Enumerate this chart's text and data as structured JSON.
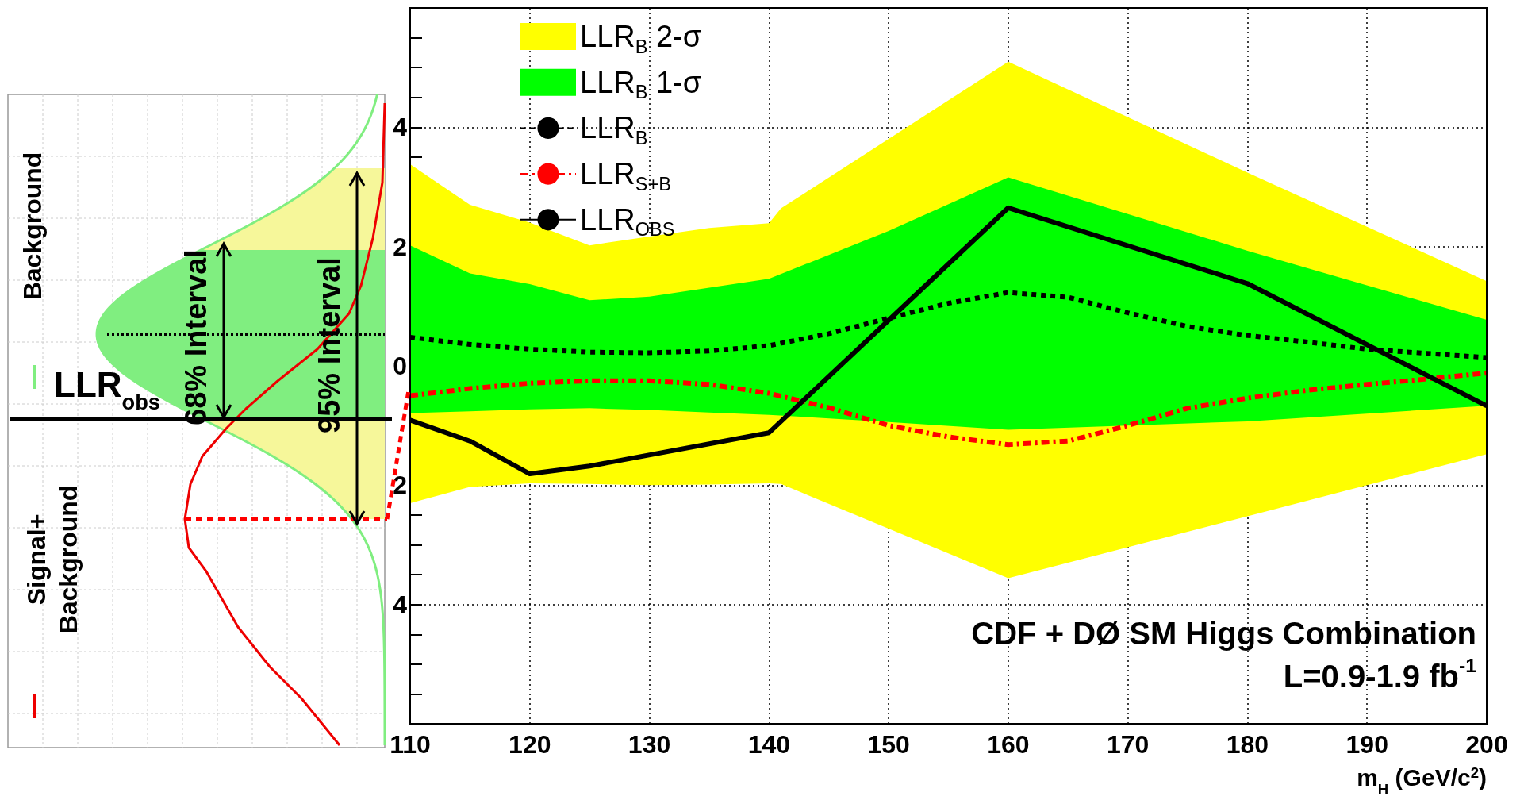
{
  "chart_data": {
    "type": "line",
    "xlabel": "m$_{H}$ (GeV/c$^{2}$)",
    "xlim": [
      110,
      200
    ],
    "xticks": [
      110,
      120,
      130,
      140,
      150,
      160,
      170,
      180,
      190,
      200
    ],
    "ylim": [
      -6,
      6
    ],
    "yticks": [
      {
        "value": -4,
        "label": "4"
      },
      {
        "value": -2,
        "label": "2"
      },
      0,
      2,
      4
    ],
    "grid": true,
    "legend": "top left",
    "series": [
      {
        "name": "LLR$_{B}$ 2-σ",
        "color": "#ffff00",
        "x": [
          110,
          115,
          120,
          125,
          130,
          135,
          140,
          141,
          160,
          180,
          200
        ],
        "values": [
          null,
          null,
          null,
          null,
          null,
          null,
          null,
          null,
          null,
          null,
          null
        ],
        "lower": [
          -2.3,
          -2.03,
          -1.97,
          -1.98,
          -2.0,
          -1.99,
          -1.97,
          -1.98,
          -3.56,
          -2.52,
          -1.48
        ],
        "upper": [
          3.38,
          2.7,
          2.4,
          2.02,
          2.17,
          2.31,
          2.39,
          2.64,
          5.1,
          3.24,
          1.42
        ]
      },
      {
        "name": "LLR$_{B}$ 1-σ",
        "color": "#00ff00",
        "x": [
          110,
          115,
          120,
          125,
          130,
          135,
          140,
          150,
          160,
          180,
          200
        ],
        "values": [
          null,
          null,
          null,
          null,
          null,
          null,
          null,
          null,
          null,
          null,
          null
        ],
        "lower": [
          -0.79,
          -0.76,
          -0.73,
          -0.71,
          -0.74,
          -0.78,
          -0.82,
          -0.94,
          -1.07,
          -0.93,
          -0.67
        ],
        "upper": [
          2.02,
          1.55,
          1.37,
          1.1,
          1.16,
          1.31,
          1.46,
          2.26,
          3.16,
          1.93,
          0.77
        ]
      },
      {
        "name": "LLR$_{B}$",
        "color": "#000000",
        "line_style": "dotted",
        "x": [
          110,
          115,
          120,
          125,
          130,
          135,
          140,
          145,
          150,
          155,
          160,
          165,
          170,
          175,
          180,
          185,
          190,
          195,
          200
        ],
        "values": [
          0.48,
          0.36,
          0.28,
          0.23,
          0.22,
          0.25,
          0.34,
          0.54,
          0.8,
          1.05,
          1.23,
          1.15,
          0.89,
          0.66,
          0.51,
          0.4,
          0.28,
          0.21,
          0.14
        ]
      },
      {
        "name": "LLR$_{S+B}$",
        "color": "#ff0000",
        "line_style": "dashed",
        "x": [
          110,
          115,
          120,
          125,
          130,
          135,
          140,
          145,
          150,
          155,
          160,
          165,
          170,
          175,
          180,
          185,
          190,
          195,
          200
        ],
        "values": [
          -0.5,
          -0.38,
          -0.29,
          -0.25,
          -0.25,
          -0.31,
          -0.46,
          -0.7,
          -1.0,
          -1.19,
          -1.32,
          -1.26,
          -1.0,
          -0.71,
          -0.54,
          -0.41,
          -0.31,
          -0.22,
          -0.12
        ]
      },
      {
        "name": "LLR$_{OBS}$",
        "color": "#000000",
        "line_style": "solid",
        "x": [
          110,
          115,
          120,
          125,
          140,
          160,
          180,
          200
        ],
        "values": [
          -0.91,
          -1.26,
          -1.81,
          -1.68,
          -1.12,
          2.65,
          1.38,
          -0.67
        ]
      }
    ],
    "annotations": [
      "CDF + DØ SM Higgs Combination",
      "L=0.9-1.9 fb$^{-1}$",
      "Background",
      "Signal+Background",
      "68% Interval",
      "95% Interval",
      "LLR$_{obs}$"
    ]
  }
}
